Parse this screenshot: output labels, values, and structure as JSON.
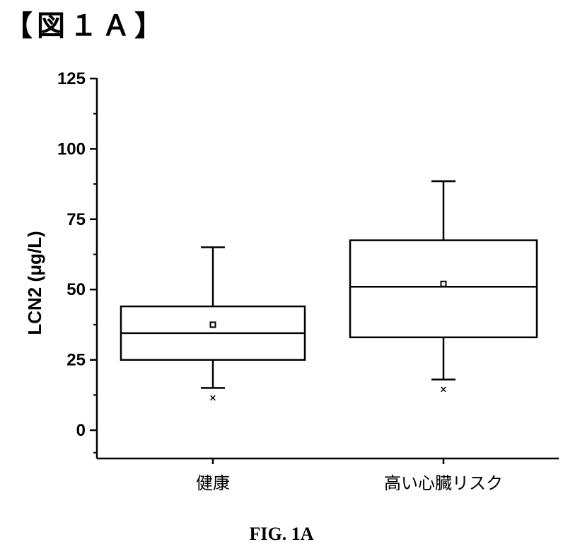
{
  "heading": "【図１Ａ】",
  "caption": "FIG. 1A",
  "chart_data": {
    "type": "box",
    "ylabel": "LCN2 (μg/L)",
    "xlabel": "",
    "ylim": [
      -10,
      125
    ],
    "yticks": [
      0,
      25,
      50,
      75,
      100,
      125
    ],
    "grid": false,
    "categories": [
      "健康",
      "高い心臓リスク"
    ],
    "boxes": [
      {
        "category": "健康",
        "whisker_low": 15,
        "q1": 25,
        "median": 34.5,
        "q3": 44,
        "whisker_high": 65,
        "mean": 37.5,
        "outliers": [
          12
        ]
      },
      {
        "category": "高い心臓リスク",
        "whisker_low": 18,
        "q1": 33,
        "median": 51,
        "q3": 67.5,
        "whisker_high": 88.5,
        "mean": 52,
        "outliers": [
          15
        ]
      }
    ]
  }
}
